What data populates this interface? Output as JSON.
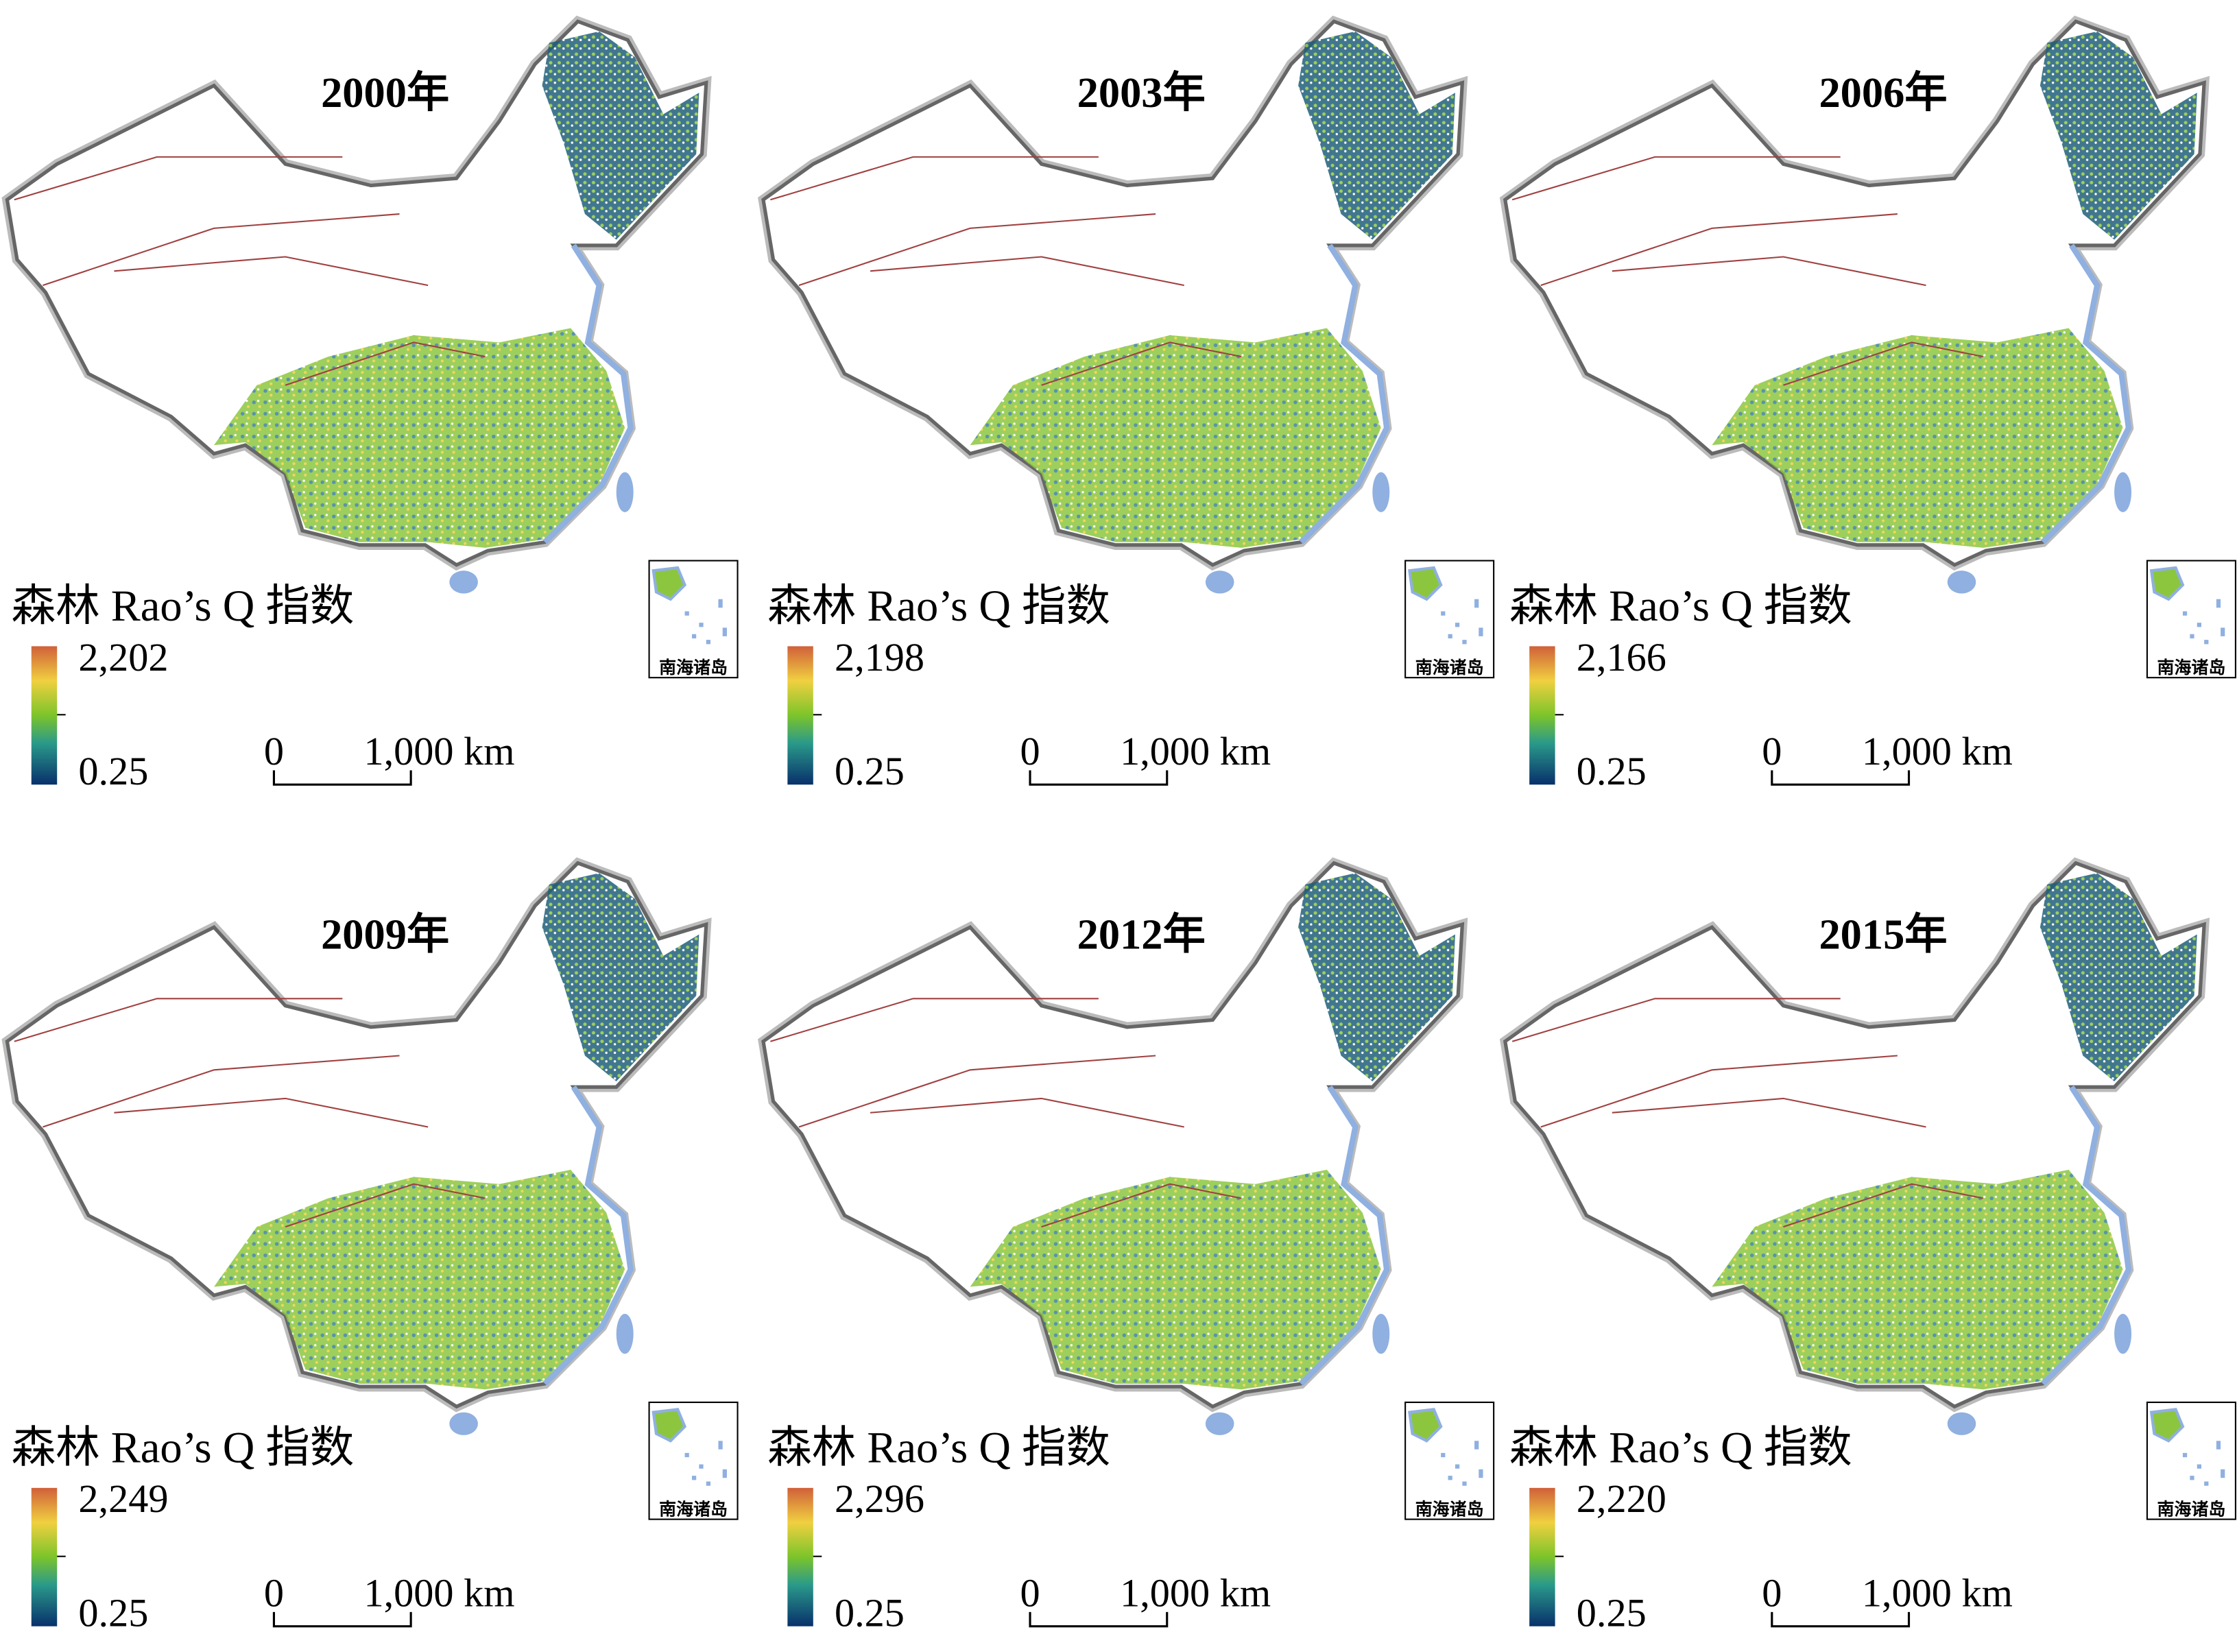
{
  "panels": [
    {
      "title": "2000年",
      "legend_title": "森林 Rao’s Q 指数",
      "legend_max": "2,202",
      "legend_min": "0.25",
      "scale_start": "0",
      "scale_end": "1,000 km",
      "inset_label": "南海诸岛"
    },
    {
      "title": "2003年",
      "legend_title": "森林 Rao’s Q 指数",
      "legend_max": "2,198",
      "legend_min": "0.25",
      "scale_start": "0",
      "scale_end": "1,000 km",
      "inset_label": "南海诸岛"
    },
    {
      "title": "2006年",
      "legend_title": "森林 Rao’s Q 指数",
      "legend_max": "2,166",
      "legend_min": "0.25",
      "scale_start": "0",
      "scale_end": "1,000 km",
      "inset_label": "南海诸岛"
    },
    {
      "title": "2009年",
      "legend_title": "森林 Rao’s Q 指数",
      "legend_max": "2,249",
      "legend_min": "0.25",
      "scale_start": "0",
      "scale_end": "1,000 km",
      "inset_label": "南海诸岛"
    },
    {
      "title": "2012年",
      "legend_title": "森林 Rao’s Q 指数",
      "legend_max": "2,296",
      "legend_min": "0.25",
      "scale_start": "0",
      "scale_end": "1,000 km",
      "inset_label": "南海诸岛"
    },
    {
      "title": "2015年",
      "legend_title": "森林 Rao’s Q 指数",
      "legend_max": "2,220",
      "legend_min": "0.25",
      "scale_start": "0",
      "scale_end": "1,000 km",
      "inset_label": "南海诸岛"
    }
  ]
}
